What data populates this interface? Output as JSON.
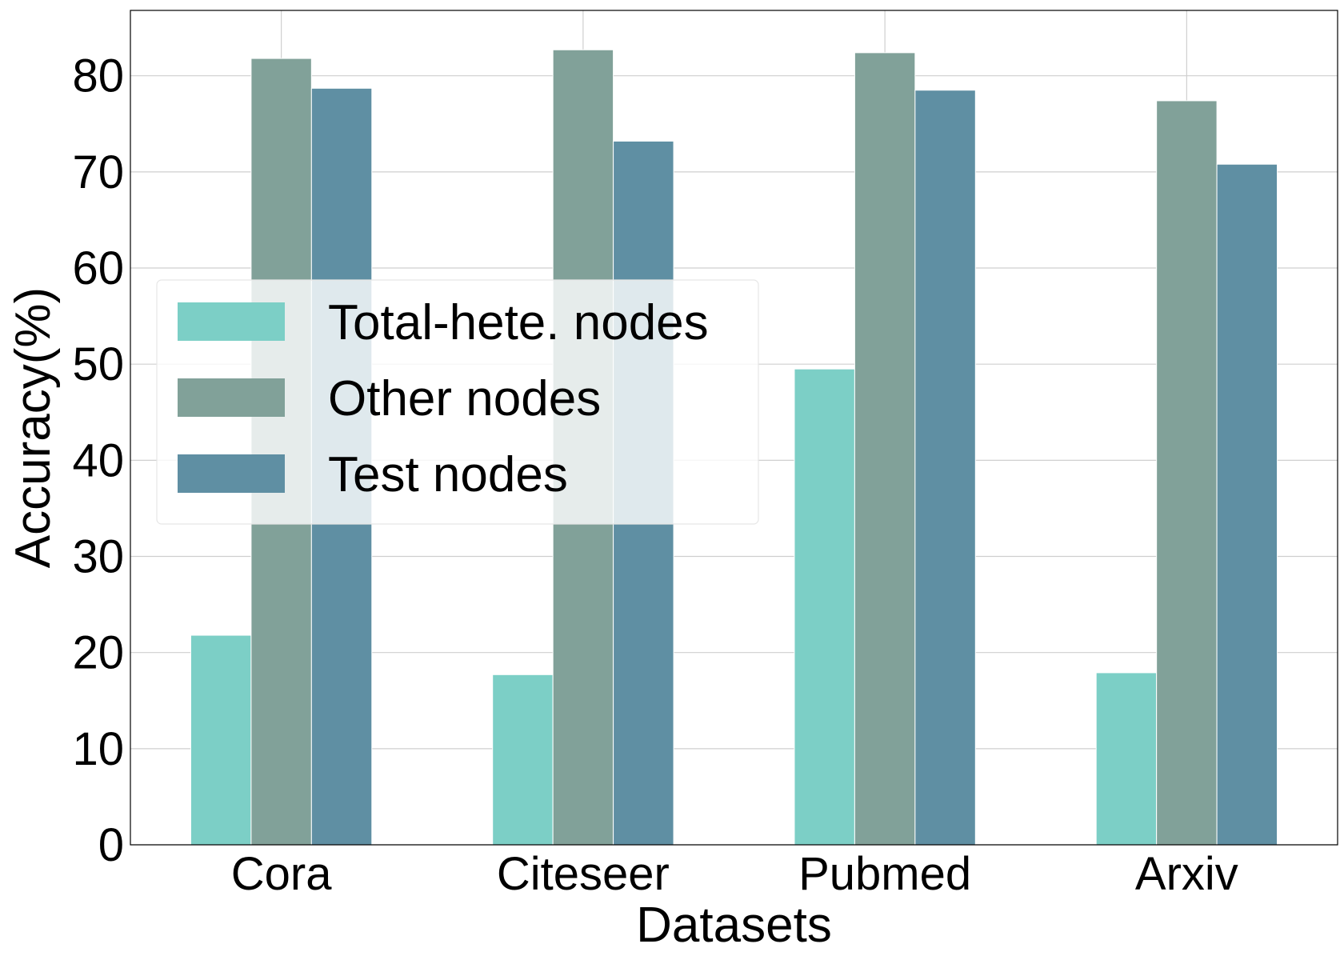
{
  "chart_data": {
    "type": "bar",
    "xlabel": "Datasets",
    "ylabel": "Accuracy(%)",
    "categories": [
      "Cora",
      "Citeseer",
      "Pubmed",
      "Arxiv"
    ],
    "series": [
      {
        "name": "Total-hete. nodes",
        "color": "#7ccfc6",
        "values": [
          21.8,
          17.7,
          49.5,
          17.9
        ]
      },
      {
        "name": "Other nodes",
        "color": "#81a199",
        "values": [
          81.8,
          82.7,
          82.4,
          77.4
        ]
      },
      {
        "name": "Test nodes",
        "color": "#5f8fa3",
        "values": [
          78.7,
          73.2,
          78.5,
          70.8
        ]
      }
    ],
    "ylim": [
      0,
      86.8
    ],
    "yticks": [
      0,
      10,
      20,
      30,
      40,
      50,
      60,
      70,
      80
    ],
    "grid": true,
    "legend_position": "center-left"
  }
}
